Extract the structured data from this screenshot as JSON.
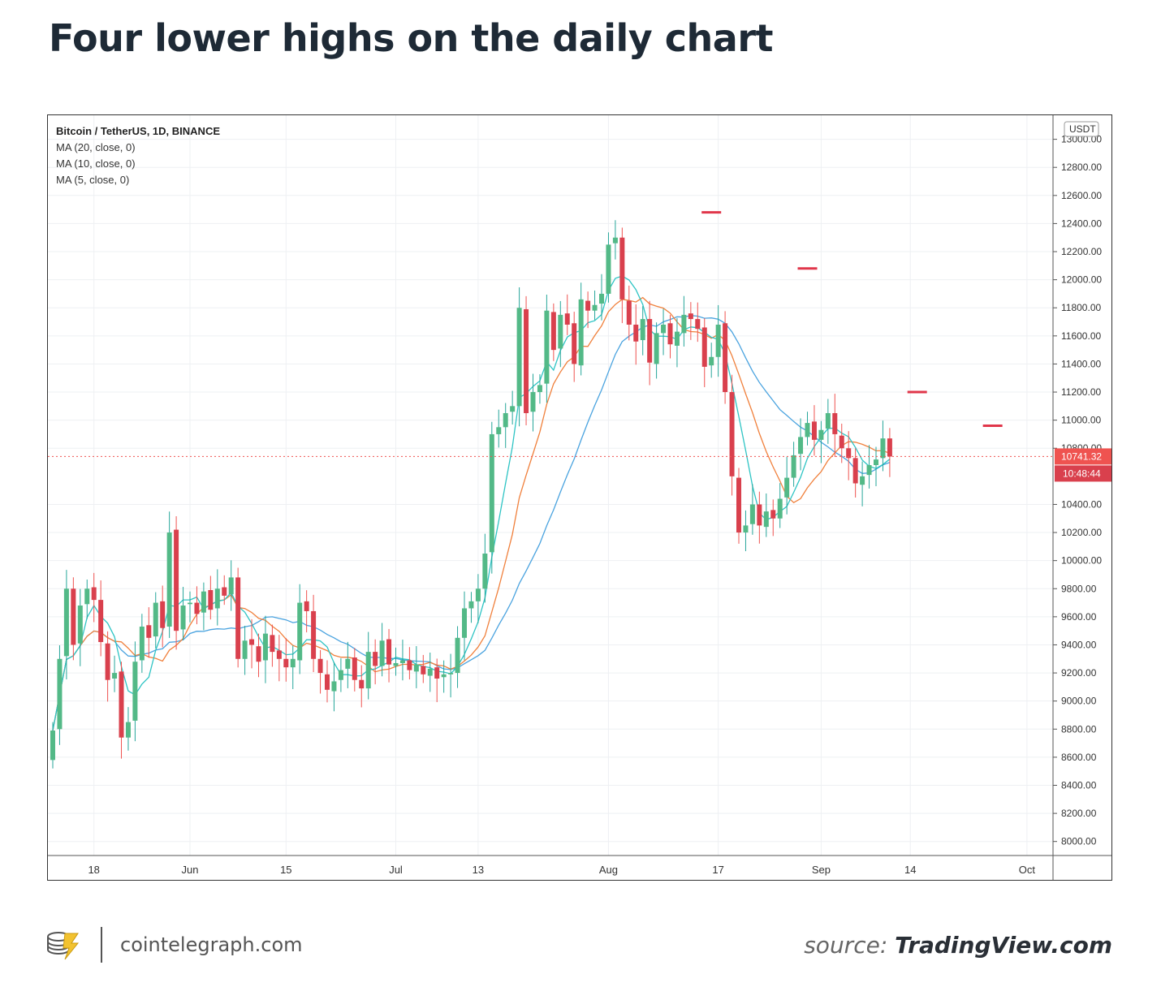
{
  "title": "Four lower highs on the daily chart",
  "legend": {
    "symbol": "Bitcoin / TetherUS, 1D, BINANCE",
    "ma20": "MA (20, close, 0)",
    "ma10": "MA (10, close, 0)",
    "ma5": "MA (5, close, 0)"
  },
  "footer": {
    "site": "cointelegraph.com",
    "source_prefix": "source: ",
    "source_name": "TradingView.com"
  },
  "colors": {
    "up": "#26a69a",
    "up_body": "#53b987",
    "down": "#ef5350",
    "down_body": "#d9404d",
    "ma_blue": "#4aa3df",
    "ma_orange": "#f0803c",
    "ma_cyan": "#2ec4c4",
    "highlight": "#e0364a"
  },
  "chart_data": {
    "type": "candlestick",
    "currency": "USDT",
    "current_price": "10741.32",
    "countdown": "10:48:44",
    "ylim": [
      7900,
      13200
    ],
    "y_ticks": [
      "13000.00",
      "12800.00",
      "12600.00",
      "12400.00",
      "12200.00",
      "12000.00",
      "11800.00",
      "11600.00",
      "11400.00",
      "11200.00",
      "11000.00",
      "10800.00",
      "10400.00",
      "10200.00",
      "10000.00",
      "9800.00",
      "9600.00",
      "9400.00",
      "9200.00",
      "9000.00",
      "8800.00",
      "8600.00",
      "8400.00",
      "8200.00",
      "8000.00"
    ],
    "x_ticks": [
      {
        "label": "18",
        "day": 6
      },
      {
        "label": "Jun",
        "day": 20
      },
      {
        "label": "15",
        "day": 34
      },
      {
        "label": "Jul",
        "day": 50
      },
      {
        "label": "13",
        "day": 62
      },
      {
        "label": "Aug",
        "day": 81
      },
      {
        "label": "17",
        "day": 97
      },
      {
        "label": "Sep",
        "day": 112
      },
      {
        "label": "14",
        "day": 125
      },
      {
        "label": "Oct",
        "day": 142
      }
    ],
    "closes": [
      8790,
      9300,
      9800,
      9400,
      9680,
      9800,
      9720,
      9420,
      9150,
      9200,
      8740,
      8850,
      9280,
      9530,
      9450,
      9700,
      9520,
      10200,
      9500,
      9680,
      9700,
      9620,
      9780,
      9650,
      9800,
      9750,
      9880,
      9300,
      9430,
      9400,
      9280,
      9480,
      9350,
      9300,
      9240,
      9300,
      9700,
      9640,
      9300,
      9200,
      9080,
      9140,
      9220,
      9300,
      9150,
      9090,
      9350,
      9250,
      9430,
      9260,
      9270,
      9290,
      9220,
      9260,
      9190,
      9230,
      9160,
      9190,
      9200,
      9450,
      9660,
      9710,
      9800,
      10050,
      10900,
      10950,
      11050,
      11100,
      11800,
      11050,
      11200,
      11250,
      11780,
      11500,
      11750,
      11680,
      11400,
      11860,
      11780,
      11820,
      11900,
      12250,
      12300,
      11860,
      11680,
      11560,
      11720,
      11410,
      11620,
      11680,
      11540,
      11630,
      11750,
      11720,
      11650,
      11380,
      11450,
      11680,
      11200,
      10600,
      10200,
      10250,
      10400,
      10250,
      10350,
      10300,
      10440,
      10590,
      10750,
      10880,
      10980,
      10860,
      10930,
      11050,
      10900,
      10800,
      10730,
      10550,
      10600,
      10680,
      10720,
      10870,
      10741
    ],
    "opens": [
      8580,
      8800,
      9320,
      9800,
      9410,
      9690,
      9810,
      9720,
      9410,
      9160,
      9210,
      8740,
      8860,
      9290,
      9540,
      9460,
      9710,
      9530,
      10220,
      9510,
      9690,
      9700,
      9630,
      9790,
      9660,
      9810,
      9760,
      9880,
      9300,
      9440,
      9390,
      9290,
      9470,
      9360,
      9300,
      9240,
      9290,
      9710,
      9640,
      9300,
      9190,
      9070,
      9150,
      9230,
      9310,
      9150,
      9090,
      9350,
      9250,
      9440,
      9250,
      9270,
      9290,
      9210,
      9250,
      9180,
      9240,
      9170,
      9190,
      9200,
      9450,
      9660,
      9710,
      9800,
      10060,
      10900,
      10950,
      11060,
      11100,
      11790,
      11060,
      11200,
      11260,
      11770,
      11510,
      11760,
      11690,
      11390,
      11850,
      11780,
      11830,
      11900,
      12260,
      12300,
      11850,
      11680,
      11570,
      11720,
      11400,
      11620,
      11690,
      11530,
      11620,
      11760,
      11720,
      11660,
      11390,
      11450,
      11690,
      11200,
      10590,
      10200,
      10260,
      10400,
      10240,
      10360,
      10300,
      10450,
      10590,
      10760,
      10880,
      10990,
      10860,
      10940,
      11050,
      10890,
      10800,
      10730,
      10540,
      10610,
      10680,
      10730,
      10870
    ]
  }
}
